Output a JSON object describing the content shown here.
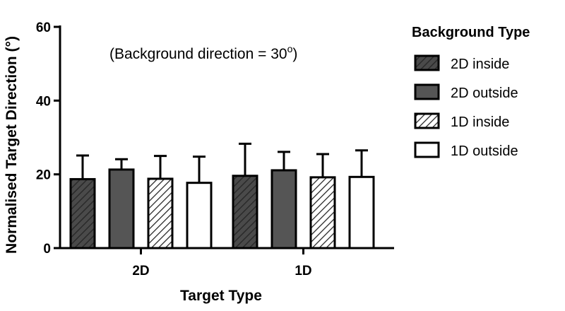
{
  "chart_data": {
    "type": "bar",
    "xlabel": "Target Type",
    "ylabel": "Normalised Target Direction (°)",
    "ylim": [
      0,
      60
    ],
    "yticks": [
      0,
      20,
      40,
      60
    ],
    "categories": [
      "2D",
      "1D"
    ],
    "legend_title": "Background Type",
    "legend_position": "right",
    "grid": false,
    "annotation_prefix": "(Background direction = 30",
    "annotation_sup": "o",
    "annotation_suffix": ")",
    "series": [
      {
        "name": "2D inside",
        "values": [
          18.7,
          19.6
        ],
        "errors": [
          6.4,
          8.7
        ],
        "fill": "hatch",
        "color": "#4a4a4a"
      },
      {
        "name": "2D outside",
        "values": [
          21.3,
          21.1
        ],
        "errors": [
          2.8,
          5.0
        ],
        "fill": "solid",
        "color": "#555555"
      },
      {
        "name": "1D inside",
        "values": [
          18.8,
          19.2
        ],
        "errors": [
          6.2,
          6.3
        ],
        "fill": "hatch",
        "color": "#ffffff"
      },
      {
        "name": "1D outside",
        "values": [
          17.7,
          19.3
        ],
        "errors": [
          7.1,
          7.2
        ],
        "fill": "solid",
        "color": "#ffffff"
      }
    ]
  }
}
